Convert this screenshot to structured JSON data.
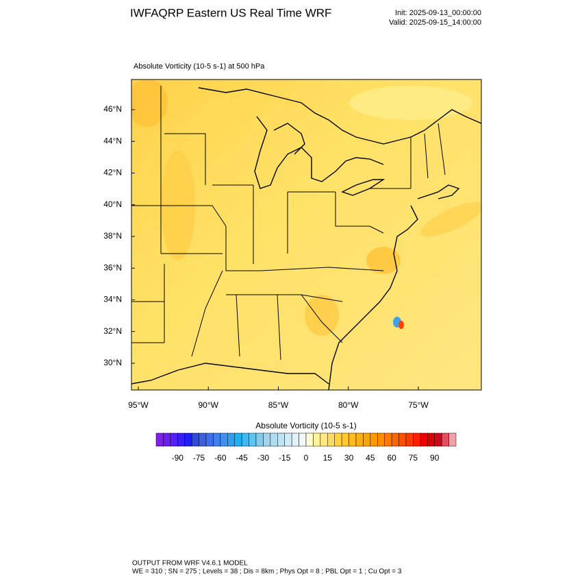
{
  "header": {
    "title": "IWFAQRP Eastern US Real Time WRF",
    "init": "Init: 2025-09-13_00:00:00",
    "valid": "Valid: 2025-09-15_14:00:00"
  },
  "map": {
    "subtitle": "Absolute Vorticity   (10-5 s-1)     at   500 hPa",
    "lat_labels": [
      "46°N",
      "44°N",
      "42°N",
      "40°N",
      "38°N",
      "36°N",
      "34°N",
      "32°N",
      "30°N"
    ],
    "lon_labels": [
      "95°W",
      "90°W",
      "85°W",
      "80°W",
      "75°W"
    ]
  },
  "colorbar": {
    "title": "Absolute Vorticity  (10-5 s-1)",
    "range": [
      -105,
      105
    ],
    "ticks": [
      -90,
      -75,
      -60,
      -45,
      -30,
      -15,
      0,
      15,
      30,
      45,
      60,
      75,
      90
    ],
    "colors": [
      "#7f1fe8",
      "#6a1ff0",
      "#5522f5",
      "#3a1ff5",
      "#1f1ff5",
      "#2e4ae0",
      "#3a5fe0",
      "#3f6fe8",
      "#3f80ea",
      "#3f90ef",
      "#2fa0f0",
      "#1fb0f0",
      "#3fbaf0",
      "#5fc4f0",
      "#80cdee",
      "#9fd6ee",
      "#b0dcf0",
      "#c0e4f4",
      "#d0ecf8",
      "#e0f2fa",
      "#f0f8fc",
      "#fffbd0",
      "#fff3a0",
      "#ffe880",
      "#ffdc60",
      "#ffd040",
      "#ffc830",
      "#ffbc20",
      "#ffb010",
      "#ffa400",
      "#ff9800",
      "#ff8c00",
      "#ff7a00",
      "#ff6600",
      "#ff5000",
      "#ff3a00",
      "#ff2000",
      "#ef0000",
      "#d80000",
      "#c80a1f",
      "#e05060",
      "#f0a0a8"
    ]
  },
  "footer": {
    "line1": "OUTPUT FROM WRF V4.6.1 MODEL",
    "line2": "WE = 310 ; SN = 275 ; Levels = 38 ; Dis = 8km ; Phys Opt = 8 ; PBL Opt = 1 ; Cu Opt = 3"
  }
}
